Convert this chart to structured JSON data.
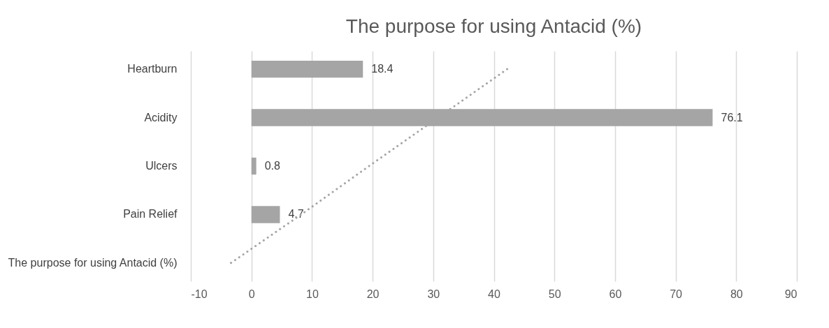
{
  "chart_data": {
    "type": "bar",
    "orientation": "horizontal",
    "title": "The purpose for using Antacid (%)",
    "categories": [
      "Heartburn",
      "Acidity",
      "Ulcers",
      "Pain Relief",
      "The purpose for using Antacid (%)"
    ],
    "series": [
      {
        "color": "#a5a5a5",
        "values": [
          18.4,
          76.1,
          0.8,
          4.7,
          null
        ],
        "value_labels": [
          "18.4",
          "76.1",
          "0.8",
          "4.7",
          null
        ]
      },
      {
        "type": "line",
        "color": "#a5a5a5",
        "line_style": "dotted",
        "values": [
          42.2,
          30.8,
          19.4,
          8.2,
          -3.4
        ]
      }
    ],
    "xlim": [
      -10,
      90
    ],
    "xticks": [
      -10,
      0,
      10,
      20,
      30,
      40,
      50,
      60,
      70,
      80,
      90
    ],
    "grid": "x"
  }
}
